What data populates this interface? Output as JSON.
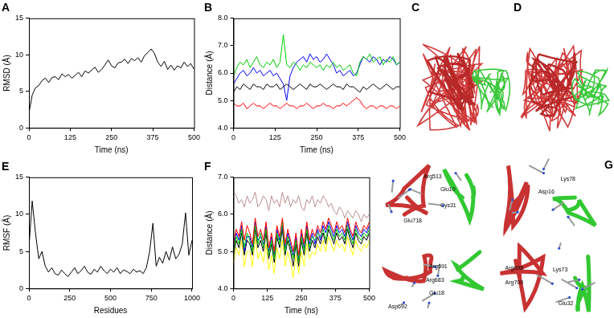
{
  "chart_data": [
    {
      "type": "line",
      "title": "A",
      "x_label": "Time (ns)",
      "y_label": "RMSD (Å)",
      "x": [
        0,
        10,
        20,
        30,
        40,
        50,
        60,
        70,
        80,
        90,
        100,
        110,
        120,
        130,
        140,
        150,
        160,
        170,
        180,
        190,
        200,
        210,
        220,
        230,
        240,
        250,
        260,
        270,
        280,
        290,
        300,
        310,
        320,
        330,
        340,
        350,
        360,
        370,
        380,
        390,
        400,
        410,
        420,
        430,
        440,
        450,
        460,
        470,
        480,
        490,
        500
      ],
      "values": [
        2.0,
        4.5,
        5.5,
        5.8,
        6.5,
        6.8,
        6.2,
        6.9,
        7.0,
        6.6,
        7.4,
        7.0,
        7.3,
        6.8,
        7.2,
        7.6,
        7.0,
        7.8,
        7.5,
        7.9,
        8.3,
        7.6,
        8.0,
        8.6,
        9.3,
        8.5,
        8.2,
        8.9,
        9.0,
        9.4,
        8.8,
        9.5,
        9.2,
        9.6,
        9.0,
        9.9,
        10.3,
        10.8,
        10.2,
        9.0,
        8.4,
        9.1,
        8.0,
        8.6,
        7.9,
        8.5,
        8.2,
        9.0,
        8.4,
        8.8,
        8.0
      ],
      "color": "#000000",
      "xlim": [
        0,
        500
      ],
      "xticks": [
        0,
        125,
        250,
        375,
        500
      ],
      "ylim": [
        0,
        15
      ],
      "yticks": [
        0,
        5,
        10,
        15
      ],
      "grid": false
    },
    {
      "type": "line",
      "title": "B",
      "x_label": "Time (ns)",
      "y_label": "Distance (Å)",
      "x": [
        0,
        10,
        20,
        30,
        40,
        50,
        60,
        70,
        80,
        90,
        100,
        110,
        120,
        130,
        140,
        150,
        160,
        170,
        180,
        190,
        200,
        210,
        220,
        230,
        240,
        250,
        260,
        270,
        280,
        290,
        300,
        310,
        320,
        330,
        340,
        350,
        360,
        370,
        380,
        390,
        400,
        410,
        420,
        430,
        440,
        450,
        460,
        470,
        480,
        490,
        500
      ],
      "series": [
        {
          "color": "#000000",
          "values": [
            5.3,
            5.5,
            5.4,
            5.6,
            5.5,
            5.4,
            5.6,
            5.5,
            5.5,
            5.4,
            5.6,
            5.5,
            5.5,
            5.6,
            5.4,
            5.5,
            5.6,
            5.5,
            5.4,
            5.5,
            5.6,
            5.5,
            5.4,
            5.6,
            5.5,
            5.5,
            5.6,
            5.5,
            5.4,
            5.5,
            5.6,
            5.5,
            5.5,
            5.4,
            5.6,
            5.5,
            5.5,
            5.4,
            5.3,
            5.5,
            5.4,
            5.5,
            5.6,
            5.5,
            5.4,
            5.5,
            5.6,
            5.5,
            5.4,
            5.5,
            5.5
          ]
        },
        {
          "color": "#ff0000",
          "values": [
            4.9,
            4.8,
            4.8,
            4.9,
            4.7,
            4.8,
            4.9,
            4.8,
            4.8,
            4.7,
            4.8,
            4.9,
            4.8,
            4.8,
            4.7,
            4.8,
            4.9,
            4.8,
            4.8,
            4.7,
            4.8,
            4.8,
            4.9,
            4.8,
            4.7,
            4.8,
            4.8,
            4.9,
            4.8,
            4.8,
            4.7,
            4.8,
            4.8,
            4.9,
            4.8,
            4.9,
            5.0,
            5.1,
            5.0,
            4.8,
            4.7,
            4.8,
            4.8,
            4.7,
            4.8,
            4.8,
            4.7,
            4.8,
            4.8,
            4.7,
            4.8
          ]
        },
        {
          "color": "#00cc00",
          "values": [
            5.9,
            6.2,
            6.4,
            6.3,
            6.5,
            6.2,
            6.4,
            6.6,
            6.3,
            6.2,
            6.4,
            6.3,
            6.5,
            6.2,
            6.4,
            7.4,
            6.3,
            6.2,
            6.4,
            6.3,
            6.1,
            6.3,
            6.2,
            6.4,
            6.3,
            6.2,
            6.3,
            6.1,
            6.3,
            6.2,
            6.4,
            6.2,
            6.3,
            6.1,
            6.2,
            6.3,
            6.0,
            5.9,
            6.4,
            6.6,
            6.5,
            6.7,
            6.4,
            6.5,
            6.6,
            6.3,
            6.5,
            6.4,
            6.6,
            6.3,
            6.4
          ]
        },
        {
          "color": "#0000ff",
          "values": [
            5.6,
            5.8,
            6.0,
            6.1,
            5.9,
            6.0,
            6.2,
            6.0,
            6.1,
            5.9,
            6.0,
            6.1,
            5.9,
            6.0,
            5.8,
            5.6,
            5.0,
            5.9,
            6.2,
            6.4,
            6.5,
            6.6,
            6.4,
            6.7,
            6.5,
            6.6,
            6.4,
            6.5,
            6.7,
            6.5,
            6.3,
            6.0,
            6.1,
            5.9,
            6.0,
            6.1,
            5.9,
            6.0,
            6.3,
            6.6,
            6.5,
            6.4,
            6.6,
            6.5,
            6.3,
            6.5,
            6.4,
            6.6,
            6.5,
            6.3,
            6.4
          ]
        }
      ],
      "xlim": [
        0,
        500
      ],
      "xticks": [
        0,
        125,
        250,
        375,
        500
      ],
      "ylim": [
        4,
        8
      ],
      "yticks": [
        {
          "value": 4,
          "label": "4.0"
        },
        {
          "value": 5,
          "label": "5.0"
        },
        {
          "value": 6,
          "label": "6.0"
        },
        {
          "value": 7,
          "label": "7.0"
        },
        {
          "value": 8,
          "label": "8.0"
        }
      ],
      "grid": false
    },
    {
      "type": "line",
      "title": "E",
      "x_label": "Residues",
      "y_label": "RMSF (Å)",
      "x": [
        0,
        20,
        40,
        60,
        80,
        100,
        120,
        140,
        160,
        180,
        200,
        220,
        240,
        260,
        280,
        300,
        320,
        340,
        360,
        380,
        400,
        420,
        440,
        460,
        480,
        500,
        520,
        540,
        560,
        580,
        600,
        620,
        640,
        660,
        680,
        700,
        720,
        740,
        760,
        780,
        800,
        820,
        840,
        860,
        880,
        900,
        920,
        940,
        960,
        980,
        1000
      ],
      "values": [
        5.5,
        11.8,
        7.5,
        4.0,
        5.0,
        3.0,
        2.2,
        2.8,
        2.0,
        1.8,
        2.5,
        2.0,
        1.6,
        2.2,
        2.8,
        2.0,
        2.4,
        3.0,
        2.2,
        1.9,
        2.6,
        2.2,
        3.0,
        2.4,
        2.0,
        2.6,
        2.2,
        2.8,
        2.0,
        2.5,
        2.3,
        2.0,
        2.6,
        2.2,
        2.4,
        2.0,
        2.8,
        5.0,
        8.8,
        3.0,
        4.2,
        3.4,
        5.0,
        3.8,
        5.6,
        4.0,
        4.6,
        6.0,
        10.2,
        4.5,
        6.5
      ],
      "color": "#000000",
      "xlim": [
        0,
        1000
      ],
      "xticks": [
        0,
        250,
        500,
        750,
        1000
      ],
      "ylim": [
        0,
        15
      ],
      "yticks": [
        0,
        5,
        10,
        15
      ],
      "grid": false
    },
    {
      "type": "line",
      "title": "F",
      "x_label": "Time (ns)",
      "y_label": "Distance (Å)",
      "x": [
        0,
        10,
        20,
        30,
        40,
        50,
        60,
        70,
        80,
        90,
        100,
        110,
        120,
        130,
        140,
        150,
        160,
        170,
        180,
        190,
        200,
        210,
        220,
        230,
        240,
        250,
        260,
        270,
        280,
        290,
        300,
        310,
        320,
        330,
        340,
        350,
        360,
        370,
        380,
        390,
        400,
        410,
        420,
        430,
        440,
        450,
        460,
        470,
        480,
        490,
        500
      ],
      "series": [
        {
          "color": "#bc8f8f",
          "values": [
            6.6,
            6.5,
            6.3,
            6.4,
            6.2,
            6.5,
            6.3,
            6.4,
            6.6,
            6.2,
            6.3,
            6.5,
            6.4,
            6.1,
            6.5,
            6.3,
            6.4,
            6.2,
            6.6,
            6.3,
            6.5,
            6.2,
            6.4,
            6.3,
            6.5,
            6.2,
            6.1,
            6.4,
            6.3,
            6.5,
            6.2,
            6.4,
            6.3,
            6.5,
            6.4,
            6.2,
            6.3,
            6.1,
            6.0,
            6.2,
            6.1,
            5.9,
            6.1,
            6.0,
            5.9,
            6.1,
            6.0,
            5.8,
            6.0,
            5.9,
            6.0
          ]
        },
        {
          "color": "#ff0000",
          "values": [
            5.2,
            5.6,
            5.4,
            5.8,
            5.3,
            5.7,
            5.5,
            5.2,
            5.9,
            5.4,
            5.6,
            5.3,
            5.8,
            5.1,
            5.5,
            5.0,
            5.7,
            5.4,
            5.9,
            5.2,
            5.6,
            5.3,
            5.0,
            5.5,
            4.9,
            5.6,
            5.2,
            5.8,
            5.3,
            5.6,
            5.4,
            5.7,
            5.5,
            5.8,
            5.6,
            5.9,
            5.7,
            5.5,
            5.8,
            5.6,
            5.7,
            5.5,
            5.9,
            5.6,
            5.4,
            5.8,
            5.6,
            5.5,
            5.7,
            5.6,
            5.8
          ]
        },
        {
          "color": "#00cc00",
          "values": [
            5.0,
            5.4,
            5.2,
            5.6,
            5.1,
            5.5,
            5.3,
            5.0,
            5.7,
            5.2,
            5.5,
            5.1,
            5.6,
            4.9,
            5.3,
            4.8,
            5.5,
            5.2,
            5.8,
            5.0,
            5.4,
            5.1,
            4.8,
            5.3,
            4.7,
            5.4,
            5.0,
            5.6,
            5.1,
            5.4,
            5.3,
            5.5,
            5.4,
            5.6,
            5.3,
            5.7,
            5.5,
            5.3,
            5.6,
            5.4,
            5.5,
            5.3,
            5.7,
            5.4,
            5.2,
            5.6,
            5.4,
            5.3,
            5.5,
            5.4,
            5.6
          ]
        },
        {
          "color": "#0000ff",
          "values": [
            5.1,
            5.5,
            5.3,
            5.7,
            5.0,
            5.4,
            5.4,
            5.1,
            5.8,
            5.3,
            5.4,
            5.2,
            5.7,
            5.0,
            5.4,
            4.9,
            5.6,
            5.3,
            5.7,
            5.1,
            5.5,
            5.2,
            4.9,
            5.4,
            4.8,
            5.5,
            5.1,
            5.7,
            5.2,
            5.5,
            5.2,
            5.6,
            5.3,
            5.7,
            5.5,
            5.8,
            5.6,
            5.4,
            5.7,
            5.5,
            5.6,
            5.4,
            5.8,
            5.5,
            5.3,
            5.7,
            5.5,
            5.4,
            5.6,
            5.5,
            5.7
          ]
        },
        {
          "color": "#000000",
          "values": [
            4.9,
            5.3,
            5.1,
            5.5,
            4.9,
            5.3,
            5.2,
            4.9,
            5.6,
            5.1,
            5.3,
            5.0,
            5.5,
            4.8,
            5.2,
            4.7,
            5.4,
            5.1,
            5.6,
            4.9,
            5.3,
            5.0,
            4.6,
            5.2,
            4.6,
            5.3,
            4.9,
            5.5,
            5.0,
            5.3,
            5.1,
            5.4,
            5.2,
            5.5,
            5.2,
            5.6,
            5.4,
            5.2,
            5.5,
            5.3,
            5.4,
            5.2,
            5.6,
            5.3,
            5.1,
            5.5,
            5.3,
            5.2,
            5.4,
            5.3,
            5.5
          ]
        },
        {
          "color": "#ffff00",
          "values": [
            4.7,
            5.1,
            4.9,
            5.3,
            4.6,
            5.0,
            5.0,
            4.6,
            5.4,
            4.8,
            5.0,
            4.7,
            5.2,
            4.5,
            4.9,
            4.4,
            5.1,
            4.8,
            5.3,
            4.6,
            5.0,
            4.7,
            4.3,
            4.9,
            4.4,
            5.0,
            4.6,
            5.2,
            4.8,
            5.0,
            4.9,
            5.2,
            5.0,
            5.3,
            5.0,
            5.4,
            5.2,
            5.0,
            5.3,
            5.1,
            5.2,
            5.0,
            5.4,
            5.1,
            4.9,
            5.3,
            5.1,
            5.0,
            5.2,
            5.1,
            5.3
          ]
        }
      ],
      "xlim": [
        0,
        500
      ],
      "xticks": [
        0,
        125,
        250,
        375,
        500
      ],
      "ylim": [
        4,
        7
      ],
      "yticks": [
        {
          "value": 4,
          "label": "4.0"
        },
        {
          "value": 5,
          "label": "5.0"
        },
        {
          "value": 6,
          "label": "6.0"
        },
        {
          "value": 7,
          "label": "7.0"
        }
      ],
      "grid": false
    }
  ],
  "images": [
    {
      "label": "C"
    },
    {
      "label": "D"
    },
    {
      "label": "G",
      "insets": [
        {
          "residues": [
            "Arg513",
            "Glu10",
            "Cys31",
            "Glu718"
          ]
        },
        {
          "residues": [
            "Lys78",
            "Asp16"
          ]
        },
        {
          "residues": [
            "Arg691",
            "Arg683",
            "Asp692",
            "Glu18"
          ]
        },
        {
          "residues": [
            "Arg698",
            "Arg700",
            "Lys73",
            "Glu32"
          ]
        }
      ]
    }
  ]
}
